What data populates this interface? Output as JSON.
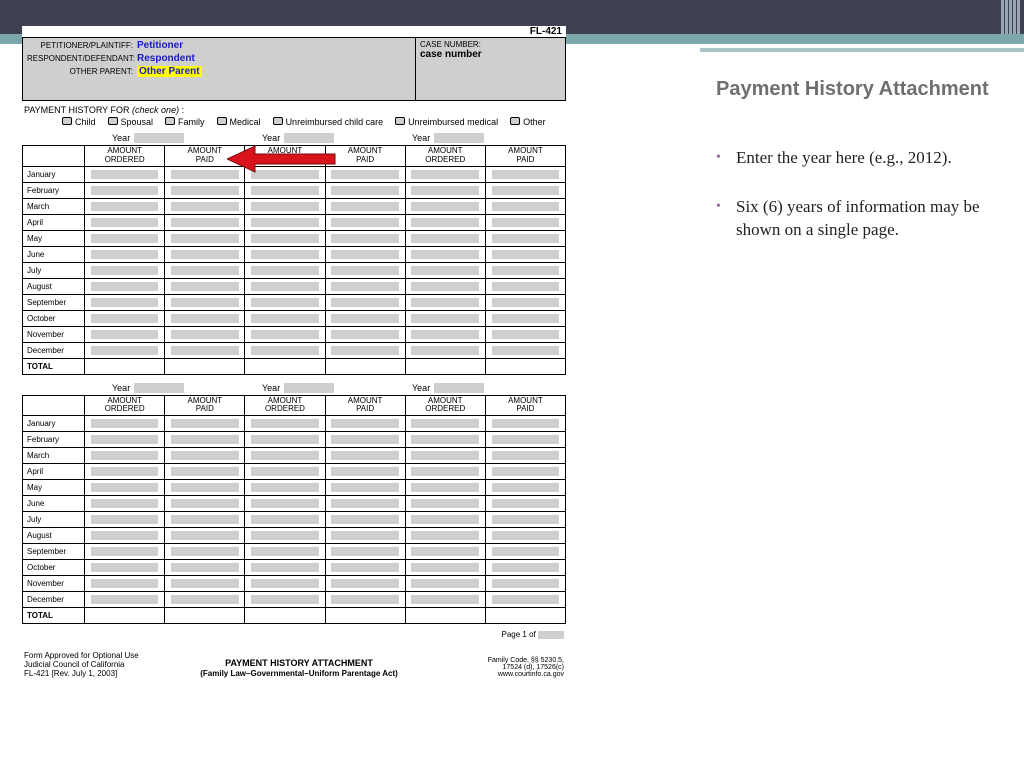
{
  "form": {
    "id": "FL-421",
    "header": {
      "petitioner_label": "PETITIONER/PLAINTIFF:",
      "petitioner_value": "Petitioner",
      "respondent_label": "RESPONDENT/DEFENDANT:",
      "respondent_value": "Respondent",
      "other_parent_label": "OTHER PARENT:",
      "other_parent_value": "Other Parent",
      "case_number_label": "CASE NUMBER:",
      "case_number_value": "case number"
    },
    "history_for": {
      "label": "PAYMENT HISTORY FOR",
      "note": "(check one)",
      "options": [
        "Child",
        "Spousal",
        "Family",
        "Medical",
        "Unreimbursed child care",
        "Unreimbursed medical",
        "Other"
      ]
    },
    "year_label": "Year",
    "columns": [
      "AMOUNT ORDERED",
      "AMOUNT PAID",
      "AMOUNT ORDERED",
      "AMOUNT PAID",
      "AMOUNT ORDERED",
      "AMOUNT PAID"
    ],
    "months": [
      "January",
      "February",
      "March",
      "April",
      "May",
      "June",
      "July",
      "August",
      "September",
      "October",
      "November",
      "December"
    ],
    "total_label": "TOTAL",
    "page_label": "Page 1 of",
    "footer": {
      "approval1": "Form Approved for Optional Use",
      "approval2": "Judicial Council of California",
      "approval3": "FL-421 [Rev. July 1, 2003]",
      "title": "PAYMENT HISTORY ATTACHMENT",
      "subtitle": "(Family Law–Governmental–Uniform Parentage Act)",
      "code1": "Family Code, §§ 5230.5,",
      "code2": "17524 (d), 17526(c)",
      "code3": "www.courtinfo.ca.gov"
    }
  },
  "right": {
    "title": "Payment History Attachment",
    "bullets": [
      "Enter the year here (e.g., 2012).",
      "Six (6) years of information may be shown on a single page."
    ]
  },
  "style": {
    "topbar_color": "#3e4250",
    "stripe_color": "#7aa8ac",
    "field_bg": "#cfcfcf",
    "highlight_bg": "#ffff00",
    "blue_text": "#1a1ac8",
    "arrow_color": "#d8131c",
    "title_color": "#6f6f6f",
    "bullet_color": "#9a6aa4"
  }
}
